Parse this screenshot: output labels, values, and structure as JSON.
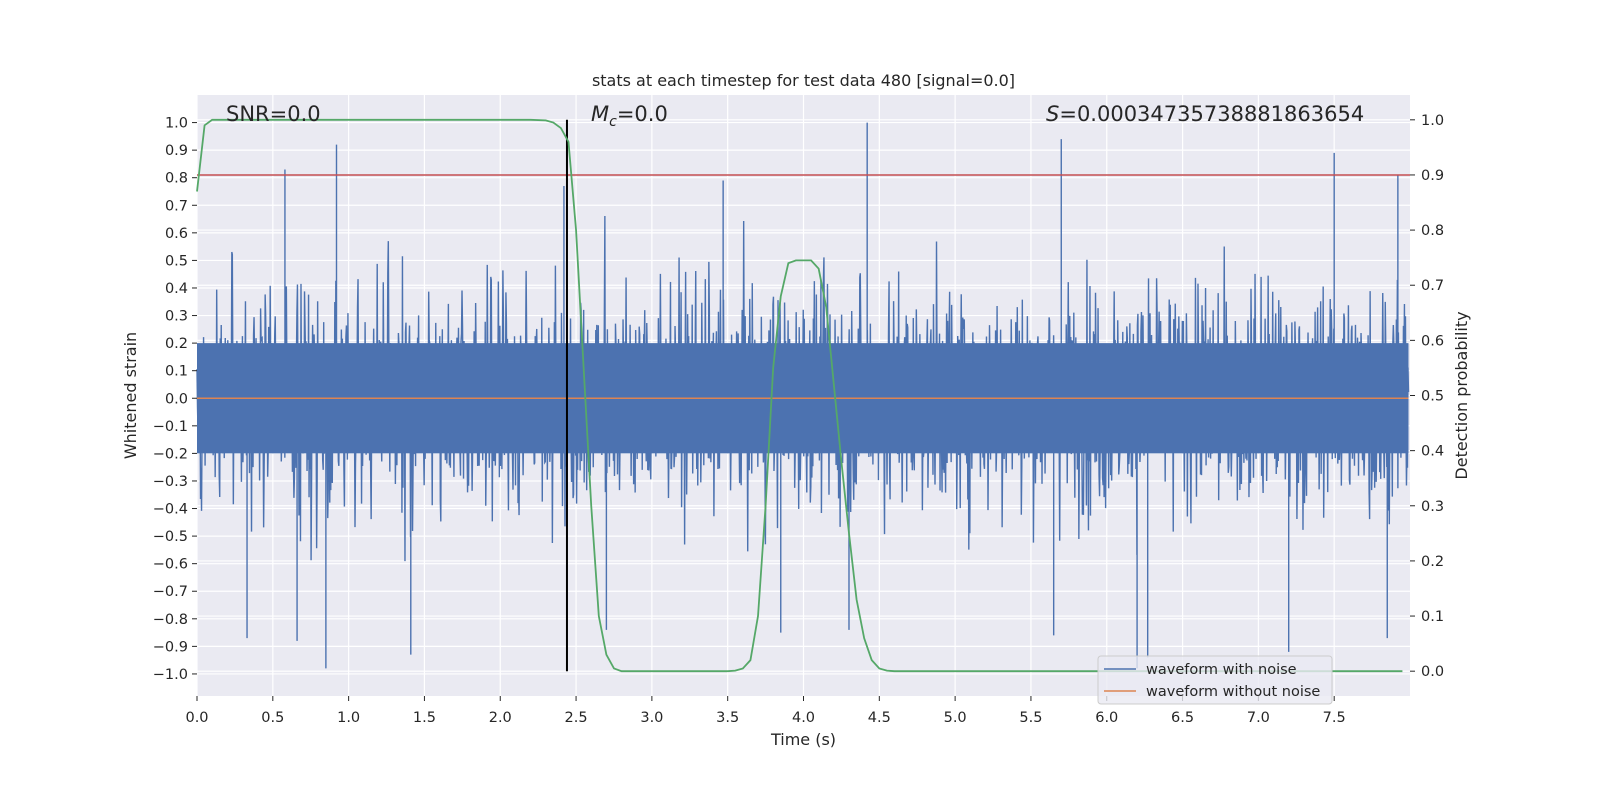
{
  "chart_data": {
    "type": "line",
    "title": "stats at each timestep for test data 480 [signal=0.0]",
    "xlabel": "Time (s)",
    "ylabel_left": "Whitened strain",
    "ylabel_right": "Detection probability",
    "xlim": [
      0.0,
      8.0
    ],
    "ylim_left": [
      -1.08,
      1.1
    ],
    "ylim_right": [
      -0.045,
      1.045
    ],
    "x_ticks": [
      0.0,
      0.5,
      1.0,
      1.5,
      2.0,
      2.5,
      3.0,
      3.5,
      4.0,
      4.5,
      5.0,
      5.5,
      6.0,
      6.5,
      7.0,
      7.5
    ],
    "x_tick_labels": [
      "0.0",
      "0.5",
      "1.0",
      "1.5",
      "2.0",
      "2.5",
      "3.0",
      "3.5",
      "4.0",
      "4.5",
      "5.0",
      "5.5",
      "6.0",
      "6.5",
      "7.0",
      "7.5"
    ],
    "y_left_ticks": [
      -1.0,
      -0.9,
      -0.8,
      -0.7,
      -0.6,
      -0.5,
      -0.4,
      -0.3,
      -0.2,
      -0.1,
      0.0,
      0.1,
      0.2,
      0.3,
      0.4,
      0.5,
      0.6,
      0.7,
      0.8,
      0.9,
      1.0
    ],
    "y_left_tick_labels": [
      "−1.0",
      "−0.9",
      "−0.8",
      "−0.7",
      "−0.6",
      "−0.5",
      "−0.4",
      "−0.3",
      "−0.2",
      "−0.1",
      "0.0",
      "0.1",
      "0.2",
      "0.3",
      "0.4",
      "0.5",
      "0.6",
      "0.7",
      "0.8",
      "0.9",
      "1.0"
    ],
    "y_right_ticks": [
      0.0,
      0.1,
      0.2,
      0.3,
      0.4,
      0.5,
      0.6,
      0.7,
      0.8,
      0.9,
      1.0
    ],
    "y_right_tick_labels": [
      "0.0",
      "0.1",
      "0.2",
      "0.3",
      "0.4",
      "0.5",
      "0.6",
      "0.7",
      "0.8",
      "0.9",
      "1.0"
    ],
    "grid": true,
    "legend_position": "bottom-right",
    "annotations": {
      "snr": "SNR=0.0",
      "mc_symbol": "M",
      "mc_subscript": "c",
      "mc_value": "=0.0",
      "s_symbol": "S",
      "s_value": "=0.0003473573888186365 4"
    },
    "series": [
      {
        "name": "waveform with noise",
        "color": "#4c72b0",
        "axis": "left",
        "description_values": "dense noise trace, envelope roughly ±0.4 with spikes up to 1.0 and down to -0.98",
        "spikes": [
          {
            "x": 0.58,
            "y": 0.83
          },
          {
            "x": 0.92,
            "y": 0.92
          },
          {
            "x": 2.42,
            "y": 0.77
          },
          {
            "x": 3.47,
            "y": 0.79
          },
          {
            "x": 4.42,
            "y": 1.0
          },
          {
            "x": 5.7,
            "y": 0.94
          },
          {
            "x": 7.5,
            "y": 0.89
          },
          {
            "x": 7.92,
            "y": 0.81
          },
          {
            "x": 0.33,
            "y": -0.87
          },
          {
            "x": 0.66,
            "y": -0.88
          },
          {
            "x": 0.85,
            "y": -0.98
          },
          {
            "x": 1.41,
            "y": -0.93
          },
          {
            "x": 2.7,
            "y": -0.84
          },
          {
            "x": 3.85,
            "y": -0.85
          },
          {
            "x": 4.3,
            "y": -0.84
          },
          {
            "x": 5.65,
            "y": -0.86
          },
          {
            "x": 6.2,
            "y": -0.98
          },
          {
            "x": 6.27,
            "y": -0.94
          },
          {
            "x": 7.2,
            "y": -0.92
          },
          {
            "x": 7.85,
            "y": -0.87
          }
        ]
      },
      {
        "name": "waveform without noise",
        "color": "#dd8452",
        "axis": "left",
        "x": [
          0.0,
          8.0
        ],
        "y": [
          0.0,
          0.0
        ]
      },
      {
        "name": "detection probability",
        "color": "#55a868",
        "axis": "right",
        "x": [
          0.0,
          0.05,
          0.1,
          0.15,
          0.2,
          0.5,
          1.0,
          1.5,
          2.0,
          2.2,
          2.3,
          2.35,
          2.4,
          2.45,
          2.5,
          2.55,
          2.6,
          2.65,
          2.7,
          2.75,
          2.8,
          2.85,
          2.9,
          3.0,
          3.2,
          3.4,
          3.5,
          3.55,
          3.6,
          3.65,
          3.7,
          3.75,
          3.8,
          3.85,
          3.9,
          3.95,
          4.0,
          4.05,
          4.1,
          4.15,
          4.2,
          4.25,
          4.3,
          4.35,
          4.4,
          4.45,
          4.5,
          4.55,
          4.6,
          4.7,
          5.0,
          6.0,
          7.0,
          7.95
        ],
        "y": [
          0.87,
          0.99,
          1.0,
          1.0,
          1.0,
          1.0,
          1.0,
          1.0,
          1.0,
          1.0,
          0.999,
          0.995,
          0.985,
          0.96,
          0.8,
          0.55,
          0.3,
          0.1,
          0.03,
          0.005,
          0.0,
          0.0,
          0.0,
          0.0,
          0.0,
          0.0,
          0.0,
          0.001,
          0.005,
          0.02,
          0.1,
          0.3,
          0.55,
          0.68,
          0.74,
          0.745,
          0.745,
          0.745,
          0.73,
          0.66,
          0.52,
          0.38,
          0.25,
          0.13,
          0.06,
          0.02,
          0.005,
          0.001,
          0.0,
          0.0,
          0.0,
          0.0,
          0.0,
          0.0
        ]
      }
    ],
    "reference_lines": [
      {
        "kind": "horizontal",
        "axis": "right",
        "value": 0.9,
        "color": "#c44e52"
      },
      {
        "kind": "vertical",
        "x": 2.44,
        "color": "#000000"
      }
    ]
  }
}
